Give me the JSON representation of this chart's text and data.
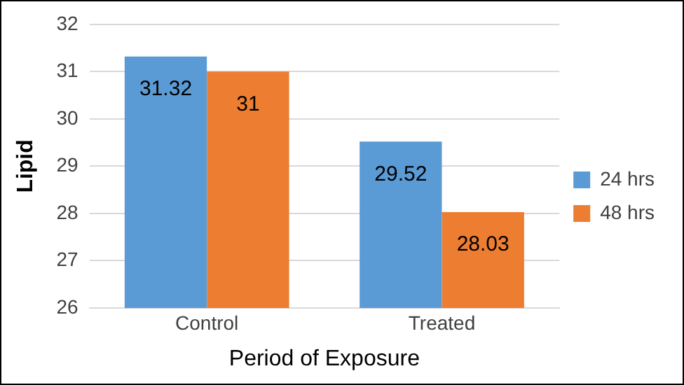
{
  "chart_data": {
    "type": "bar",
    "xlabel": "Period of Exposure",
    "ylabel": "Lipid",
    "categories": [
      "Control",
      "Treated"
    ],
    "series": [
      {
        "name": "24 hrs",
        "color": "#5b9bd5",
        "values": [
          31.32,
          29.52
        ]
      },
      {
        "name": "48 hrs",
        "color": "#ed7d31",
        "values": [
          31,
          28.03
        ]
      }
    ],
    "ylim": [
      26,
      32
    ],
    "yticks": [
      26,
      27,
      28,
      29,
      30,
      31,
      32
    ],
    "grid": "y",
    "legend": "right",
    "data_labels": true
  }
}
